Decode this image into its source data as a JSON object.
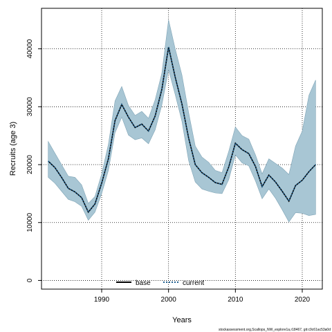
{
  "chart_data": {
    "type": "line",
    "xlabel": "Years",
    "ylabel": "Recruits (age 3)",
    "xlim": [
      1981,
      2023
    ],
    "ylim": [
      -1500,
      47000
    ],
    "x_ticks": [
      1990,
      2000,
      2010,
      2020
    ],
    "y_ticks": [
      0,
      10000,
      20000,
      30000,
      40000
    ],
    "grid": true,
    "legend_position": "bottom-center",
    "colors": {
      "band_fill": "#a8c6d4",
      "band_edge": "#7fa4b6",
      "base_line": "#000000",
      "current_line": "#1f5f8f"
    },
    "x": [
      1982,
      1983,
      1984,
      1985,
      1986,
      1987,
      1988,
      1989,
      1990,
      1991,
      1992,
      1993,
      1994,
      1995,
      1996,
      1997,
      1998,
      1999,
      2000,
      2001,
      2002,
      2003,
      2004,
      2005,
      2006,
      2007,
      2008,
      2009,
      2010,
      2011,
      2012,
      2013,
      2014,
      2015,
      2016,
      2017,
      2018,
      2019,
      2020,
      2021,
      2022
    ],
    "series": [
      {
        "name": "base",
        "style": "solid",
        "values": [
          20600,
          19500,
          17800,
          15900,
          15300,
          14300,
          11800,
          13200,
          16800,
          21000,
          27600,
          30400,
          28200,
          26400,
          27000,
          25800,
          28400,
          33000,
          40300,
          35100,
          30500,
          24600,
          20000,
          18600,
          17800,
          16900,
          16600,
          19600,
          23700,
          22600,
          21900,
          19700,
          16200,
          18200,
          17000,
          15400,
          13700,
          16400,
          17300,
          18800,
          20000
        ]
      },
      {
        "name": "current",
        "style": "dotted",
        "values": [
          20600,
          19500,
          17800,
          15900,
          15300,
          14300,
          11800,
          13200,
          16800,
          21000,
          27600,
          30400,
          28200,
          26400,
          27000,
          25800,
          28400,
          33000,
          40300,
          35100,
          30500,
          24600,
          20000,
          18600,
          17800,
          16900,
          16600,
          19600,
          23700,
          22600,
          21900,
          19700,
          16200,
          18200,
          17000,
          15400,
          13700,
          16400,
          17300,
          18800,
          20000
        ]
      }
    ],
    "band": {
      "upper": [
        24000,
        22000,
        20000,
        18000,
        17800,
        16500,
        13300,
        14500,
        18400,
        23500,
        31000,
        33500,
        30200,
        28500,
        29200,
        28000,
        31200,
        35800,
        45000,
        40000,
        35500,
        29000,
        23200,
        21300,
        20400,
        19000,
        18600,
        22300,
        26500,
        25000,
        24400,
        21700,
        18400,
        21000,
        20200,
        19400,
        18300,
        23200,
        25800,
        32000,
        34600
      ],
      "lower": [
        17800,
        16800,
        15400,
        14000,
        13600,
        12800,
        10400,
        11800,
        15000,
        19000,
        25500,
        28200,
        25100,
        24300,
        24600,
        23600,
        26000,
        30300,
        36400,
        32100,
        27500,
        20700,
        17000,
        15800,
        15400,
        15100,
        15000,
        17400,
        21700,
        20300,
        19800,
        17200,
        14100,
        15800,
        14200,
        12200,
        10100,
        11700,
        11600,
        11200,
        11400
      ]
    }
  },
  "footer": {
    "source": "stockassessment.org,Scallops_NW_explore1a,r18467, git:c9c61ac53a0d"
  }
}
